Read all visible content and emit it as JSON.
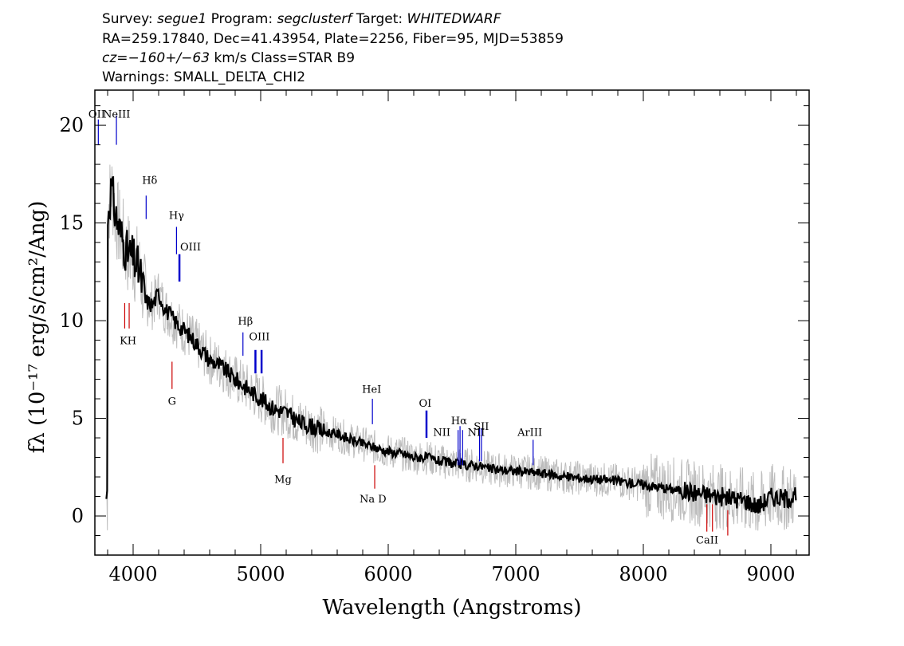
{
  "header": {
    "line1": {
      "survey_label": "Survey: ",
      "survey": "segue1",
      "program_label": " Program: ",
      "program": "segclusterf",
      "target_label": " Target: ",
      "target": "WHITEDWARF"
    },
    "line2": "RA=259.17840, Dec=41.43954, Plate=2256, Fiber=95, MJD=53859",
    "line3": {
      "cz": "cz=−160+/−63",
      "rest": " km/s Class=STAR B9"
    },
    "line4": "Warnings: SMALL_DELTA_CHI2"
  },
  "chart_data": {
    "type": "line",
    "xlabel": "Wavelength (Angstroms)",
    "ylabel": "fλ (10⁻¹⁷ erg/s/cm²/Ang)",
    "xlim": [
      3700,
      9300
    ],
    "ylim": [
      -2,
      21.8
    ],
    "x_ticks": [
      4000,
      5000,
      6000,
      7000,
      8000,
      9000
    ],
    "y_ticks": [
      0,
      5,
      10,
      15,
      20
    ],
    "series": [
      {
        "kind": "smoothed flux",
        "color": "#000000",
        "x": [
          3800,
          3830,
          3860,
          3900,
          3950,
          4000,
          4050,
          4100,
          4150,
          4200,
          4250,
          4300,
          4350,
          4400,
          4500,
          4600,
          4700,
          4800,
          4900,
          5000,
          5100,
          5200,
          5300,
          5400,
          5500,
          5600,
          5700,
          5800,
          5900,
          6000,
          6100,
          6200,
          6300,
          6400,
          6500,
          6600,
          6700,
          6800,
          7000,
          7200,
          7400,
          7600,
          7800,
          8000,
          8200,
          8400,
          8600,
          8800,
          8900,
          9000,
          9100,
          9200
        ],
        "y": [
          15.5,
          16.8,
          15.5,
          14.5,
          13.5,
          13.2,
          12.5,
          11.0,
          10.8,
          11.4,
          10.6,
          10.2,
          9.8,
          9.5,
          8.8,
          8.0,
          7.6,
          7.0,
          6.5,
          6.0,
          5.5,
          5.3,
          4.8,
          4.6,
          4.3,
          4.2,
          3.9,
          3.7,
          3.5,
          3.3,
          3.2,
          3.0,
          3.0,
          2.8,
          2.7,
          2.6,
          2.6,
          2.4,
          2.3,
          2.2,
          2.0,
          1.9,
          1.8,
          1.6,
          1.4,
          1.2,
          1.0,
          0.8,
          0.5,
          1.0,
          0.9,
          1.0
        ]
      },
      {
        "kind": "raw flux",
        "color": "#bdbdbd",
        "note": "noisy unsmoothed spectrum plotted beneath the smoothed curve"
      }
    ],
    "emission_lines": [
      {
        "label": "OII",
        "x": 3727
      },
      {
        "label": "NeIII",
        "x": 3869
      },
      {
        "label": "Hδ",
        "x": 4102
      },
      {
        "label": "Hγ",
        "x": 4340
      },
      {
        "label": "OIII",
        "x": 4363
      },
      {
        "label": "Hβ",
        "x": 4861
      },
      {
        "label": "OIII",
        "x": 4959
      },
      {
        "label": "OIII",
        "x": 5007
      },
      {
        "label": "HeI",
        "x": 5876
      },
      {
        "label": "OI",
        "x": 6300
      },
      {
        "label": "NII",
        "x": 6548
      },
      {
        "label": "Hα",
        "x": 6563
      },
      {
        "label": "NII",
        "x": 6583
      },
      {
        "label": "SII",
        "x": 6716
      },
      {
        "label": "SII",
        "x": 6731
      },
      {
        "label": "ArIII",
        "x": 7136
      }
    ],
    "absorption_lines": [
      {
        "label": "K",
        "x": 3934
      },
      {
        "label": "H",
        "x": 3969
      },
      {
        "label": "G",
        "x": 4305
      },
      {
        "label": "Mg",
        "x": 5175
      },
      {
        "label": "Na D",
        "x": 5894
      },
      {
        "label": "CaII",
        "x": 8498
      },
      {
        "label": "CaII",
        "x": 8542
      },
      {
        "label": "CaII",
        "x": 8662
      }
    ],
    "display_labels": {
      "OII": "OII",
      "NeIII": "NeIII",
      "Hd": "Hδ",
      "Hg": "Hγ",
      "OIIIa": "OIII",
      "Hb": "Hβ",
      "OIIIb": "OIII",
      "HeI": "HeI",
      "OI": "OI",
      "NIIa": "NII",
      "Ha": "Hα",
      "NIIb": "NII",
      "SII": "SII",
      "ArIII": "ArIII",
      "KH": "KH",
      "G": "G",
      "Mg": "Mg",
      "NaD": "Na D",
      "CaII": "CaII"
    },
    "colors": {
      "emission": "#0000cc",
      "absorption": "#cc0000",
      "flux": "#000000",
      "noise": "#bdbdbd"
    }
  }
}
